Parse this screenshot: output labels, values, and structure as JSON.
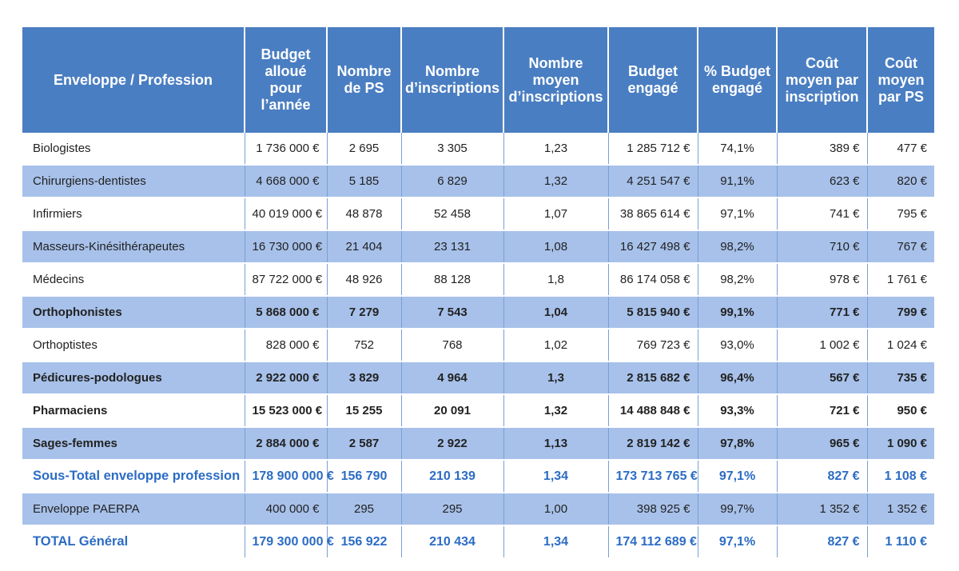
{
  "headers": [
    "Enveloppe / Profession",
    "Budget alloué pour l’année",
    "Nombre de PS",
    "Nombre d’inscriptions",
    "Nombre moyen d’inscriptions",
    "Budget engagé",
    "% Budget engagé",
    "Coût moyen par inscription",
    "Coût moyen par PS"
  ],
  "rows": [
    {
      "style": "normal",
      "cells": [
        "Biologistes",
        "1 736 000 €",
        "2 695",
        "3 305",
        "1,23",
        "1 285 712 €",
        "74,1%",
        "389 €",
        "477 €"
      ]
    },
    {
      "style": "normal",
      "cells": [
        "Chirurgiens-dentistes",
        "4 668 000 €",
        "5 185",
        "6 829",
        "1,32",
        "4 251 547 €",
        "91,1%",
        "623 €",
        "820 €"
      ]
    },
    {
      "style": "normal",
      "cells": [
        "Infirmiers",
        "40 019 000 €",
        "48 878",
        "52 458",
        "1,07",
        "38 865 614 €",
        "97,1%",
        "741 €",
        "795 €"
      ]
    },
    {
      "style": "normal",
      "cells": [
        "Masseurs-Kinésithérapeutes",
        "16 730 000 €",
        "21 404",
        "23 131",
        "1,08",
        "16 427 498 €",
        "98,2%",
        "710 €",
        "767 €"
      ]
    },
    {
      "style": "normal",
      "cells": [
        "Médecins",
        "87 722 000 €",
        "48 926",
        "88 128",
        "1,8",
        "86 174 058 €",
        "98,2%",
        "978 €",
        "1 761 €"
      ]
    },
    {
      "style": "bold",
      "cells": [
        "Orthophonistes",
        "5 868 000 €",
        "7 279",
        "7 543",
        "1,04",
        "5 815 940 €",
        "99,1%",
        "771 €",
        "799 €"
      ]
    },
    {
      "style": "normal",
      "cells": [
        "Orthoptistes",
        "828 000 €",
        "752",
        "768",
        "1,02",
        "769 723 €",
        "93,0%",
        "1 002 €",
        "1 024 €"
      ]
    },
    {
      "style": "bold",
      "cells": [
        "Pédicures-podologues",
        "2 922 000 €",
        "3 829",
        "4 964",
        "1,3",
        "2 815 682 €",
        "96,4%",
        "567 €",
        "735 €"
      ]
    },
    {
      "style": "bold",
      "cells": [
        "Pharmaciens",
        "15 523 000 €",
        "15 255",
        "20 091",
        "1,32",
        "14 488 848 €",
        "93,3%",
        "721 €",
        "950 €"
      ]
    },
    {
      "style": "bold",
      "cells": [
        "Sages-femmes",
        "2 884 000 €",
        "2 587",
        "2 922",
        "1,13",
        "2 819 142 €",
        "97,8%",
        "965 €",
        "1 090 €"
      ]
    },
    {
      "style": "blue",
      "cells": [
        "Sous-Total enveloppe profession",
        "178 900 000 €",
        "156 790",
        "210 139",
        "1,34",
        "173 713 765 €",
        "97,1%",
        "827 €",
        "1 108 €"
      ]
    },
    {
      "style": "normal",
      "cells": [
        "Enveloppe PAERPA",
        "400 000 €",
        "295",
        "295",
        "1,00",
        "398 925 €",
        "99,7%",
        "1 352 €",
        "1 352 €"
      ]
    },
    {
      "style": "blue",
      "cells": [
        "TOTAL Général",
        "179 300 000 €",
        "156 922",
        "210 434",
        "1,34",
        "174 112 689 €",
        "97,1%",
        "827 €",
        "1 110 €"
      ]
    }
  ]
}
